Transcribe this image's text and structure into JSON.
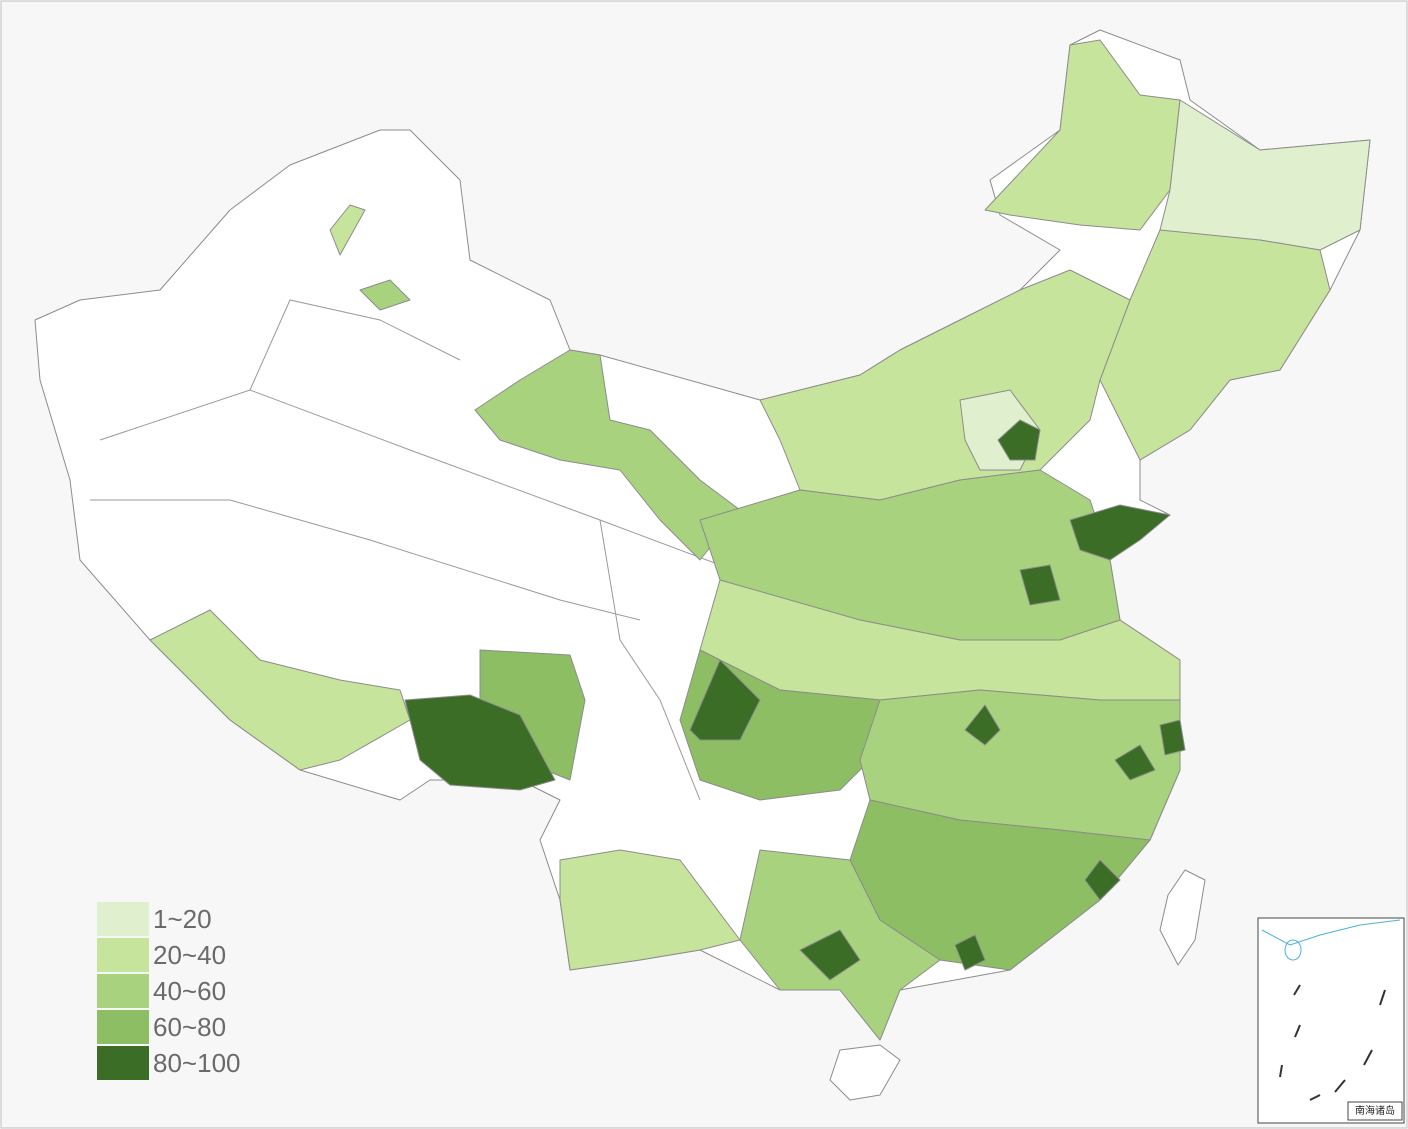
{
  "legend": {
    "items": [
      {
        "label": "1~20",
        "color": "#e0f0cf"
      },
      {
        "label": "20~40",
        "color": "#c6e49b"
      },
      {
        "label": "40~60",
        "color": "#a9d27f"
      },
      {
        "label": "60~80",
        "color": "#8dbe64"
      },
      {
        "label": "80~100",
        "color": "#3b6d27"
      }
    ]
  },
  "inset": {
    "label": "南海诸岛"
  }
}
